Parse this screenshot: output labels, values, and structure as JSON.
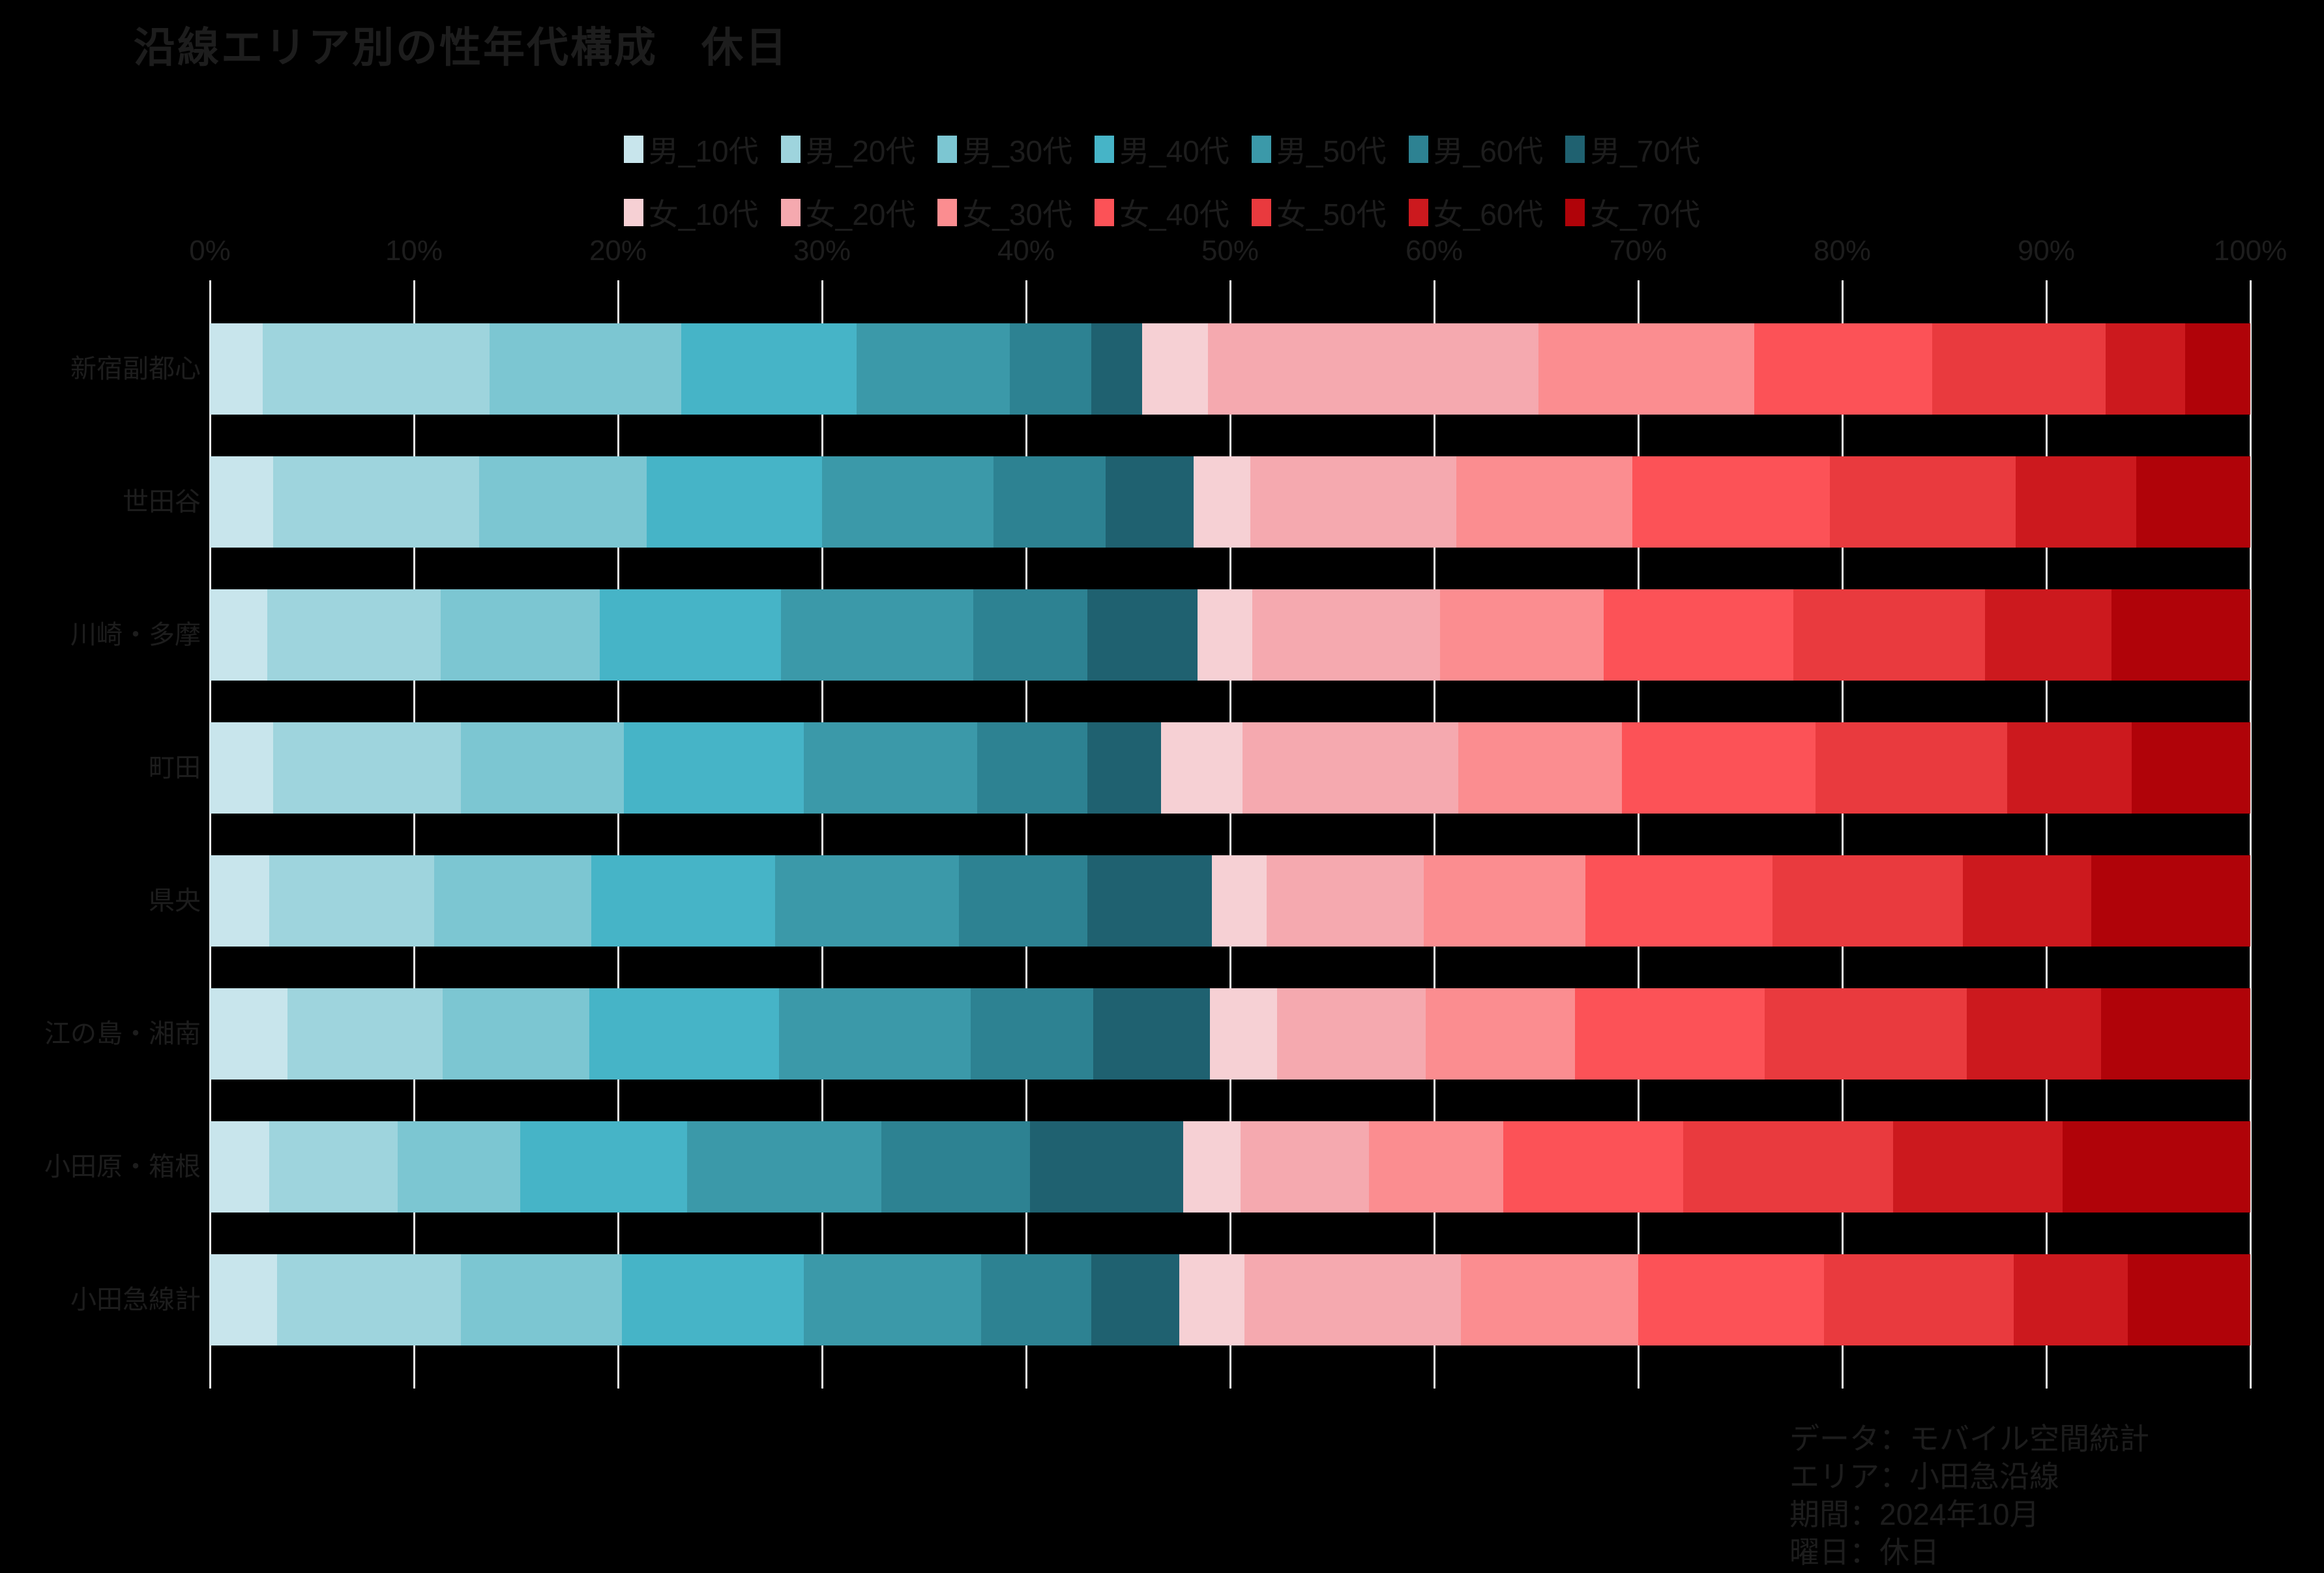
{
  "title": "沿線エリア別の性年代構成　休日",
  "footer": {
    "lines": [
      "データ：モバイル空間統計",
      "エリア：小田急沿線",
      "期間：2024年10月",
      "曜日：休日"
    ]
  },
  "colors": {
    "background": "#000000",
    "text": "#1d1d1d",
    "grid": "#ededed"
  },
  "chart_data": {
    "type": "bar",
    "stacked": true,
    "orientation": "horizontal",
    "unit": "%",
    "title": "沿線エリア別の性年代構成　休日",
    "xlim": [
      0,
      100
    ],
    "x_ticks": [
      "0%",
      "10%",
      "20%",
      "30%",
      "40%",
      "50%",
      "60%",
      "70%",
      "80%",
      "90%",
      "100%"
    ],
    "grid": true,
    "legend_position": "top",
    "categories": [
      "新宿副都心",
      "世田谷",
      "川崎・多摩",
      "町田",
      "県央",
      "江の島・湘南",
      "小田原・箱根",
      "小田急線計"
    ],
    "series": [
      {
        "name": "男_10代",
        "color": "#c8e5ec",
        "values": [
          2.6,
          3.1,
          2.8,
          3.1,
          2.9,
          3.8,
          2.9,
          3.3
        ]
      },
      {
        "name": "男_20代",
        "color": "#9ed4dd",
        "values": [
          11.1,
          10.1,
          8.5,
          9.2,
          8.1,
          7.6,
          6.3,
          9.0
        ]
      },
      {
        "name": "男_30代",
        "color": "#7cc6d2",
        "values": [
          9.4,
          8.2,
          7.8,
          8.0,
          7.7,
          7.2,
          6.0,
          7.9
        ]
      },
      {
        "name": "男_40代",
        "color": "#46b4c7",
        "values": [
          8.6,
          8.6,
          8.9,
          8.8,
          9.0,
          9.3,
          8.2,
          8.9
        ]
      },
      {
        "name": "男_50代",
        "color": "#3b99a9",
        "values": [
          7.5,
          8.4,
          9.4,
          8.5,
          9.0,
          9.4,
          9.5,
          8.7
        ]
      },
      {
        "name": "男_60代",
        "color": "#2d8292",
        "values": [
          4.0,
          5.5,
          5.6,
          5.4,
          6.3,
          6.0,
          7.3,
          5.4
        ]
      },
      {
        "name": "男_70代",
        "color": "#1f6170",
        "values": [
          2.5,
          4.3,
          5.4,
          3.6,
          6.1,
          5.7,
          7.5,
          4.3
        ]
      },
      {
        "name": "女_10代",
        "color": "#f6d0d4",
        "values": [
          3.2,
          2.8,
          2.7,
          4.0,
          2.7,
          3.3,
          2.8,
          3.2
        ]
      },
      {
        "name": "女_20代",
        "color": "#f5a9af",
        "values": [
          16.2,
          10.1,
          9.2,
          10.6,
          7.7,
          7.3,
          6.3,
          10.6
        ]
      },
      {
        "name": "女_30代",
        "color": "#fb8d90",
        "values": [
          10.6,
          8.6,
          8.0,
          8.0,
          7.9,
          7.3,
          6.6,
          8.7
        ]
      },
      {
        "name": "女_40代",
        "color": "#fc5257",
        "values": [
          8.7,
          9.7,
          9.3,
          9.5,
          9.2,
          9.3,
          8.8,
          9.1
        ]
      },
      {
        "name": "女_50代",
        "color": "#e93a3e",
        "values": [
          8.5,
          9.1,
          9.4,
          9.4,
          9.3,
          9.9,
          10.3,
          9.3
        ]
      },
      {
        "name": "女_60代",
        "color": "#cc191e",
        "values": [
          3.9,
          5.9,
          6.2,
          6.1,
          6.3,
          6.6,
          8.3,
          5.6
        ]
      },
      {
        "name": "女_70代",
        "color": "#b00309",
        "values": [
          3.2,
          5.6,
          6.8,
          5.8,
          7.8,
          7.3,
          9.2,
          6.0
        ]
      }
    ]
  }
}
